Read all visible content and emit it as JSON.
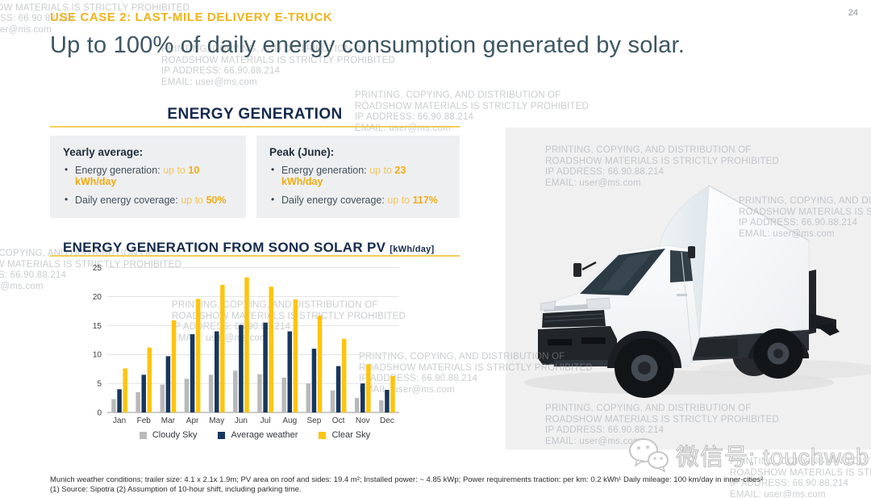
{
  "page": {
    "number": "24"
  },
  "header": {
    "kicker": "USE CASE 2: LAST-MILE DELIVERY E-TRUCK",
    "title": "Up to 100% of daily energy consumption generated by solar."
  },
  "energy_generation": {
    "section_title": "ENERGY GENERATION",
    "cards": [
      {
        "heading": "Yearly average:",
        "bullets": [
          {
            "label": "Energy generation: ",
            "qualifier": "up to ",
            "value": "10 kWh/day"
          },
          {
            "label": "Daily energy coverage: ",
            "qualifier": "up to ",
            "value": "50%"
          }
        ]
      },
      {
        "heading": "Peak (June):",
        "bullets": [
          {
            "label": "Energy generation: ",
            "qualifier": "up to ",
            "value": "23 kWh/day"
          },
          {
            "label": "Daily energy coverage: ",
            "qualifier": "up to ",
            "value": "117%"
          }
        ]
      }
    ]
  },
  "chart_data": {
    "type": "bar",
    "title": "ENERGY GENERATION FROM SONO SOLAR PV",
    "title_unit": "[kWh/day]",
    "categories": [
      "Jan",
      "Feb",
      "Mar",
      "Apr",
      "May",
      "Jun",
      "Jul",
      "Aug",
      "Sep",
      "Oct",
      "Nov",
      "Dec"
    ],
    "series": [
      {
        "name": "Cloudy Sky",
        "color": "#b9b9b9",
        "values": [
          2.3,
          3.5,
          4.8,
          5.8,
          6.5,
          7.2,
          6.6,
          6.0,
          5.0,
          3.8,
          2.5,
          2.1
        ]
      },
      {
        "name": "Average weather",
        "color": "#17375e",
        "values": [
          4.0,
          6.5,
          9.7,
          13.5,
          14.0,
          15.1,
          15.5,
          14.0,
          11.0,
          8.0,
          5.0,
          3.9
        ]
      },
      {
        "name": "Clear Sky",
        "color": "#fec40f",
        "values": [
          7.6,
          11.2,
          15.9,
          19.6,
          22.0,
          23.3,
          21.7,
          19.5,
          16.7,
          12.7,
          8.3,
          6.3
        ]
      }
    ],
    "xlabel": "",
    "ylabel": "",
    "ylim": [
      0,
      25
    ],
    "yticks": [
      0,
      5,
      10,
      15,
      20,
      25
    ],
    "grid": true,
    "legend_position": "bottom"
  },
  "watermark": {
    "lines": [
      "PRINTING, COPYING, AND DISTRIBUTION OF",
      "ROADSHOW MATERIALS IS STRICTLY PROHIBITED",
      "IP ADDRESS: 66.90.88.214",
      "EMAIL: user@ms.com"
    ]
  },
  "wechat_badge": {
    "text": "微信号: touchweb"
  },
  "footnotes": {
    "line1": "Munich weather conditions; trailer size: 4.1 x 2.1x 1.9m; PV area on roof and sides: 19.4 m²; Installed power: ~ 4.85 kWp; Power requirements traction: per km: 0.2 kWh¹ Daily mileage: 100 km/day in inner-cities²",
    "line2": "(1) Source: Sipotra (2) Assumption of 10-hour shift, including parking time."
  },
  "colors": {
    "accent_yellow": "#efb41c",
    "underline_yellow": "#f3cd58",
    "dark_navy": "#152a4d",
    "title_slate": "#3d5663",
    "panel_gray": "#f0f0f1",
    "card_gray": "#eeeff1"
  }
}
